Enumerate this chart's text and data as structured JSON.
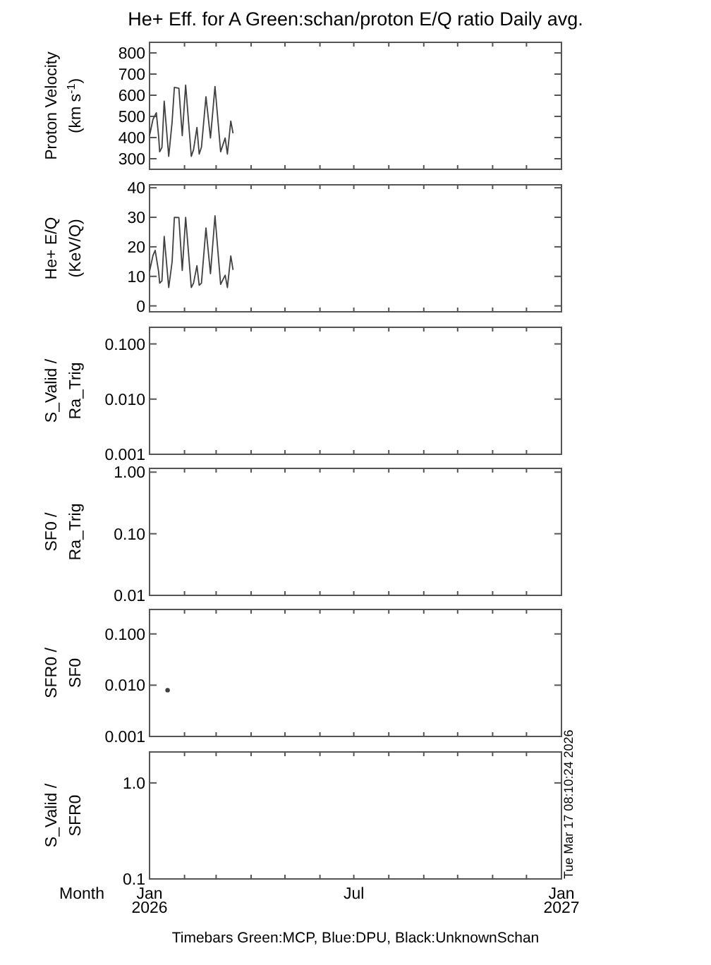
{
  "chart_data": [
    {
      "type": "line",
      "title": "He+ Eff. for A Green:schan/proton E/Q ratio Daily avg.",
      "ylabel": "Proton Velocity\n(km s$^{-1}$)",
      "xlim": [
        "2026-01-01",
        "2027-01-01"
      ],
      "xticks": [
        {
          "value": "2026-01-01",
          "label": null
        },
        {
          "value": "2026-02-01",
          "label": null
        },
        {
          "value": "2026-03-01",
          "label": null
        },
        {
          "value": "2026-04-01",
          "label": null
        },
        {
          "value": "2026-05-01",
          "label": null
        },
        {
          "value": "2026-06-01",
          "label": null
        },
        {
          "value": "2026-07-01",
          "label": null
        },
        {
          "value": "2026-08-01",
          "label": null
        },
        {
          "value": "2026-09-01",
          "label": null
        },
        {
          "value": "2026-10-01",
          "label": null
        },
        {
          "value": "2026-11-01",
          "label": null
        },
        {
          "value": "2026-12-01",
          "label": null
        },
        {
          "value": "2027-01-01",
          "label": null
        }
      ],
      "ylim": [
        250,
        850
      ],
      "yticks": [
        300,
        400,
        500,
        600,
        700,
        800
      ],
      "tick_labels": "y",
      "line_style": "solid",
      "marker": "none",
      "x": [
        "2026-01-01",
        "2026-01-04",
        "2026-01-06",
        "2026-01-07",
        "2026-01-09",
        "2026-01-10",
        "2026-01-12",
        "2026-01-14",
        "2026-01-18",
        "2026-01-21",
        "2026-01-23",
        "2026-01-27",
        "2026-01-30",
        "2026-02-02",
        "2026-02-07",
        "2026-02-09",
        "2026-02-12",
        "2026-02-14",
        "2026-02-16",
        "2026-02-20",
        "2026-02-24",
        "2026-02-28",
        "2026-03-05",
        "2026-03-09",
        "2026-03-11",
        "2026-03-14",
        "2026-03-16"
      ],
      "series": [
        {
          "color": "#404040",
          "values": [
            409,
            485,
            507,
            517,
            409,
            333,
            354,
            572,
            311,
            474,
            637,
            633,
            409,
            648,
            311,
            343,
            448,
            322,
            354,
            593,
            398,
            641,
            333,
            398,
            322,
            478,
            420
          ]
        }
      ]
    },
    {
      "type": "line",
      "ylabel": "He+ E/Q\n(KeV/Q)",
      "xlim": [
        "2026-01-01",
        "2027-01-01"
      ],
      "xticks": [
        {
          "value": "2026-01-01",
          "label": null
        },
        {
          "value": "2026-02-01",
          "label": null
        },
        {
          "value": "2026-03-01",
          "label": null
        },
        {
          "value": "2026-04-01",
          "label": null
        },
        {
          "value": "2026-05-01",
          "label": null
        },
        {
          "value": "2026-06-01",
          "label": null
        },
        {
          "value": "2026-07-01",
          "label": null
        },
        {
          "value": "2026-08-01",
          "label": null
        },
        {
          "value": "2026-09-01",
          "label": null
        },
        {
          "value": "2026-10-01",
          "label": null
        },
        {
          "value": "2026-11-01",
          "label": null
        },
        {
          "value": "2026-12-01",
          "label": null
        },
        {
          "value": "2027-01-01",
          "label": null
        }
      ],
      "ylim": [
        -2,
        41
      ],
      "yticks": [
        0,
        10,
        20,
        30,
        40
      ],
      "tick_labels": "y",
      "line_style": "solid",
      "marker": "none",
      "x": [
        "2026-01-01",
        "2026-01-04",
        "2026-01-06",
        "2026-01-09",
        "2026-01-10",
        "2026-01-12",
        "2026-01-14",
        "2026-01-18",
        "2026-01-21",
        "2026-01-23",
        "2026-01-27",
        "2026-01-30",
        "2026-02-02",
        "2026-02-07",
        "2026-02-09",
        "2026-02-12",
        "2026-02-14",
        "2026-02-16",
        "2026-02-20",
        "2026-02-24",
        "2026-02-28",
        "2026-03-05",
        "2026-03-09",
        "2026-03-11",
        "2026-03-14",
        "2026-03-16"
      ],
      "series": [
        {
          "color": "#404040",
          "values": [
            11.7,
            17,
            18.8,
            11.7,
            7.7,
            8.5,
            23.5,
            6.2,
            14.9,
            30,
            29.9,
            12,
            30,
            6.2,
            7.7,
            13.6,
            7,
            7.7,
            26.4,
            10.9,
            30.5,
            7.3,
            10.4,
            6.2,
            16.9,
            12.2
          ]
        }
      ]
    },
    {
      "type": "line",
      "ylabel": "S_Valid /\nRa_Trig",
      "xlim": [
        "2026-01-01",
        "2027-01-01"
      ],
      "xticks": [
        {
          "value": "2026-01-01",
          "label": null
        },
        {
          "value": "2026-02-01",
          "label": null
        },
        {
          "value": "2026-03-01",
          "label": null
        },
        {
          "value": "2026-04-01",
          "label": null
        },
        {
          "value": "2026-05-01",
          "label": null
        },
        {
          "value": "2026-06-01",
          "label": null
        },
        {
          "value": "2026-07-01",
          "label": null
        },
        {
          "value": "2026-08-01",
          "label": null
        },
        {
          "value": "2026-09-01",
          "label": null
        },
        {
          "value": "2026-10-01",
          "label": null
        },
        {
          "value": "2026-11-01",
          "label": null
        },
        {
          "value": "2026-12-01",
          "label": null
        },
        {
          "value": "2027-01-01",
          "label": null
        }
      ],
      "ylim": [
        0.001,
        0.2
      ],
      "yticks": [
        {
          "value": 0.1,
          "label": "0.100"
        },
        {
          "value": 0.01,
          "label": "0.010"
        },
        {
          "value": 0.001,
          "label": "0.001"
        }
      ],
      "log": true,
      "tick_labels": "y"
    },
    {
      "type": "line",
      "ylabel": "SF0 /\nRa_Trig",
      "xlim": [
        "2026-01-01",
        "2027-01-01"
      ],
      "xticks": [
        {
          "value": "2026-01-01",
          "label": null
        },
        {
          "value": "2026-02-01",
          "label": null
        },
        {
          "value": "2026-03-01",
          "label": null
        },
        {
          "value": "2026-04-01",
          "label": null
        },
        {
          "value": "2026-05-01",
          "label": null
        },
        {
          "value": "2026-06-01",
          "label": null
        },
        {
          "value": "2026-07-01",
          "label": null
        },
        {
          "value": "2026-08-01",
          "label": null
        },
        {
          "value": "2026-09-01",
          "label": null
        },
        {
          "value": "2026-10-01",
          "label": null
        },
        {
          "value": "2026-11-01",
          "label": null
        },
        {
          "value": "2026-12-01",
          "label": null
        },
        {
          "value": "2027-01-01",
          "label": null
        }
      ],
      "ylim": [
        0.01,
        1.15
      ],
      "yticks": [
        {
          "value": 1,
          "label": "1.00"
        },
        {
          "value": 0.1,
          "label": "0.10"
        },
        {
          "value": 0.01,
          "label": "0.01"
        }
      ],
      "log": true,
      "tick_labels": "y"
    },
    {
      "type": "scatter",
      "ylabel": "SFR0 /\nSF0",
      "xlim": [
        "2026-01-01",
        "2027-01-01"
      ],
      "xticks": [
        {
          "value": "2026-01-01",
          "label": null
        },
        {
          "value": "2026-02-01",
          "label": null
        },
        {
          "value": "2026-03-01",
          "label": null
        },
        {
          "value": "2026-04-01",
          "label": null
        },
        {
          "value": "2026-05-01",
          "label": null
        },
        {
          "value": "2026-06-01",
          "label": null
        },
        {
          "value": "2026-07-01",
          "label": null
        },
        {
          "value": "2026-08-01",
          "label": null
        },
        {
          "value": "2026-09-01",
          "label": null
        },
        {
          "value": "2026-10-01",
          "label": null
        },
        {
          "value": "2026-11-01",
          "label": null
        },
        {
          "value": "2026-12-01",
          "label": null
        },
        {
          "value": "2027-01-01",
          "label": null
        }
      ],
      "ylim": [
        0.001,
        0.3
      ],
      "yticks": [
        {
          "value": 0.1,
          "label": "0.100"
        },
        {
          "value": 0.01,
          "label": "0.010"
        },
        {
          "value": 0.001,
          "label": "0.001"
        }
      ],
      "log": true,
      "tick_labels": "y",
      "marker": "circle",
      "x": [
        "2026-01-17"
      ],
      "series": [
        {
          "color": "#404040",
          "values": [
            0.008
          ]
        }
      ]
    },
    {
      "type": "line",
      "ylabel": "S_Valid /\nSFR0",
      "xlabel": "Month",
      "xlim": [
        "2026-01-01",
        "2027-01-01"
      ],
      "xticks": [
        {
          "value": "2026-01-01",
          "label": "Jan\n2026"
        },
        {
          "value": "2026-02-01",
          "label": null
        },
        {
          "value": "2026-03-01",
          "label": null
        },
        {
          "value": "2026-04-01",
          "label": null
        },
        {
          "value": "2026-05-01",
          "label": null
        },
        {
          "value": "2026-06-01",
          "label": null
        },
        {
          "value": "2026-07-01",
          "label": "Jul"
        },
        {
          "value": "2026-08-01",
          "label": null
        },
        {
          "value": "2026-09-01",
          "label": null
        },
        {
          "value": "2026-10-01",
          "label": null
        },
        {
          "value": "2026-11-01",
          "label": null
        },
        {
          "value": "2026-12-01",
          "label": null
        },
        {
          "value": "2027-01-01",
          "label": "Jan\n2027"
        }
      ],
      "ylim": [
        0.1,
        2.1
      ],
      "yticks": [
        {
          "value": 1,
          "label": "1.0"
        },
        {
          "value": 0.1,
          "label": "0.1"
        }
      ],
      "log": true,
      "annotations": [
        "Tue Mar 17 08:10:24 2026",
        "Timebars Green:MCP, Blue:DPU, Black:UnknownSchan"
      ]
    }
  ]
}
